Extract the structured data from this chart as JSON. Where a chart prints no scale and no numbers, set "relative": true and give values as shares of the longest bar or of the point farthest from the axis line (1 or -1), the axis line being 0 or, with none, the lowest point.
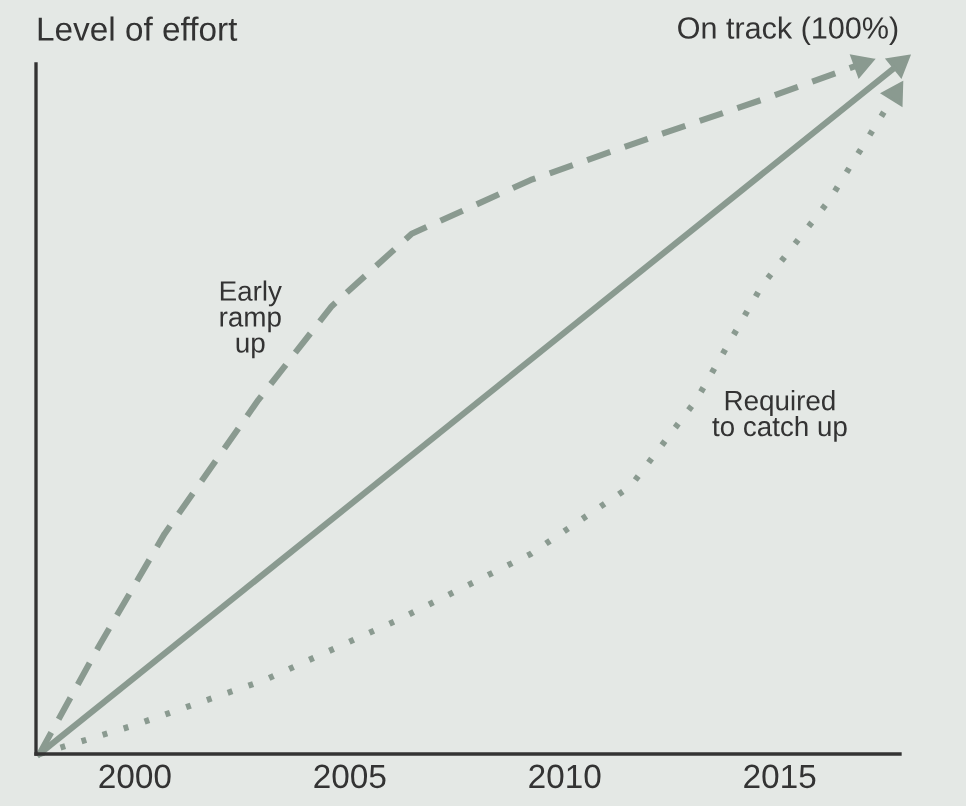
{
  "chart_data": {
    "type": "line",
    "relative": true,
    "ylabel": "Level of effort",
    "xlim": [
      1997.7,
      2017.8
    ],
    "xticks": [
      2000,
      2005,
      2010,
      2015
    ],
    "tick_labels": "x",
    "grid": false,
    "legend": false,
    "series": [
      {
        "color": "#8a9a90",
        "line_style": "solid",
        "x": [
          1997.78,
          2017.78
        ],
        "values": [
          0,
          1.0
        ]
      },
      {
        "color": "#8a9a90",
        "line_style": "dashed",
        "x": [
          1997.78,
          1999.17,
          2000.69,
          2002.87,
          2004.58,
          2006.44,
          2009.21,
          2012.27,
          2014.58,
          2016.9
        ],
        "values": [
          0,
          0.157,
          0.319,
          0.513,
          0.649,
          0.754,
          0.832,
          0.899,
          0.948,
          1.0
        ]
      },
      {
        "color": "#8a9a90",
        "line_style": "dotted",
        "x": [
          1997.78,
          1999.95,
          2003.01,
          2006.11,
          2009.21,
          2011.53,
          2013.06,
          2014.58,
          2016.16,
          2017.69
        ],
        "values": [
          0,
          0.041,
          0.107,
          0.194,
          0.29,
          0.388,
          0.513,
          0.678,
          0.803,
          0.957
        ]
      }
    ],
    "annotations": [
      {
        "text": "On track (100%)",
        "x": 2017.78,
        "y": 1.0
      },
      "Early\nramp\nup",
      "Required\nto catch up"
    ]
  }
}
